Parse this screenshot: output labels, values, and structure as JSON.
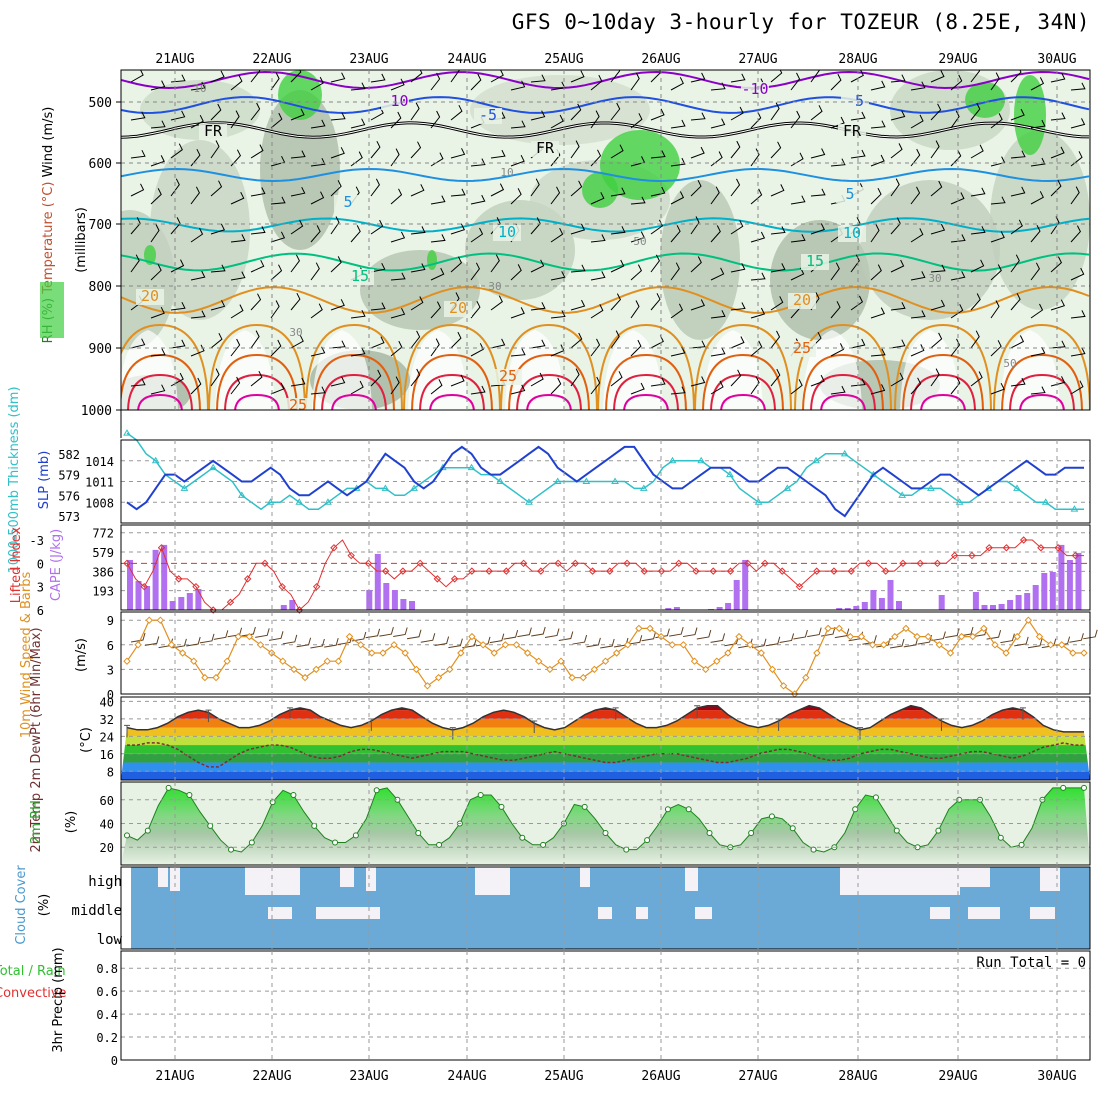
{
  "title": "GFS 0~10day 3-hourly for TOZEUR (8.25E, 34N)",
  "dates": [
    "21AUG",
    "22AUG",
    "23AUG",
    "24AUG",
    "25AUG",
    "26AUG",
    "27AUG",
    "28AUG",
    "29AUG",
    "30AUG"
  ],
  "colors": {
    "temp_isotherms": [
      "#8a00c8",
      "#2050e0",
      "#000000",
      "#1e90e0",
      "#00b0c8",
      "#00c080",
      "#e09020",
      "#e06010",
      "#e02040",
      "#e000a0"
    ],
    "rh": "#40d040",
    "slp": "#2040d0",
    "thickness": "#30c0c8",
    "cape": "#b070f0",
    "li": "#e03030",
    "wind10": "#e09020",
    "barb": "#604020",
    "cloud": "#6baad7"
  },
  "labels": {
    "upper_left": [
      "RH (%)",
      "Temperature (°C)",
      "Wind (m/s)"
    ],
    "upper_right": "(millibars)",
    "thick_left": "1000-500mb Thickness (dm)",
    "thick_right": "SLP (mb)",
    "cape_left": "Lifted Index",
    "cape_right": "CAPE (J/kg)",
    "wind_left": "10m Wind Speed & Barbs",
    "wind_right": "(m/s)",
    "temp_left": "2m Temp 2m DewPt (6hr Min/Max)",
    "temp_right": "(°C)",
    "rh_left": "2m RH",
    "rh_right": "(%)",
    "cloud_left": "Cloud Cover",
    "cloud_right": "(%)",
    "precip_left": "Total / Rain Convective",
    "precip_right": "3hr Precip (mm)",
    "run_total": "Run Total = 0"
  },
  "chart_data": [
    {
      "type": "contour",
      "title": "Upper air: RH, Temperature, Wind",
      "ylabel": "millibars",
      "yticks": [
        500,
        600,
        700,
        800,
        900,
        1000
      ],
      "isotherms": [
        {
          "label": "-10",
          "values": [
            -10
          ]
        },
        {
          "label": "-5",
          "values": [
            -5
          ]
        },
        {
          "label": "FR",
          "values": [
            0
          ]
        },
        {
          "label": "5",
          "values": [
            5
          ]
        },
        {
          "label": "10",
          "values": [
            10
          ]
        },
        {
          "label": "15",
          "values": [
            15
          ]
        },
        {
          "label": "20",
          "values": [
            20
          ]
        },
        {
          "label": "25",
          "values": [
            25
          ]
        }
      ],
      "rh_labels": [
        "10",
        "10",
        "50",
        "30",
        "30",
        "30",
        "50"
      ]
    },
    {
      "type": "line",
      "title": "1000-500mb Thickness & SLP",
      "thickness_ticks": [
        573,
        576,
        579,
        582
      ],
      "slp_ticks": [
        1008,
        1011,
        1014
      ],
      "thickness": [
        585,
        584,
        582,
        581,
        579,
        578,
        577,
        578,
        579,
        580,
        579,
        578,
        576,
        575,
        574,
        575,
        575,
        576,
        575,
        574,
        574,
        575,
        576,
        577,
        577,
        578,
        577,
        577,
        576,
        576,
        577,
        578,
        579,
        580,
        580,
        580,
        580,
        579,
        579,
        578,
        577,
        576,
        575,
        576,
        577,
        578,
        578,
        578,
        578,
        578,
        578,
        578,
        578,
        577,
        577,
        578,
        580,
        581,
        581,
        581,
        581,
        580,
        580,
        579,
        577,
        576,
        575,
        575,
        576,
        577,
        578,
        580,
        581,
        582,
        582,
        582,
        581,
        580,
        579,
        578,
        577,
        576,
        576,
        577,
        577,
        577,
        576,
        575,
        575,
        576,
        577,
        578,
        578,
        577,
        576,
        575,
        575,
        574,
        574,
        574,
        574
      ],
      "slp": [
        1008,
        1007,
        1008,
        1010,
        1012,
        1012,
        1011,
        1012,
        1013,
        1014,
        1013,
        1012,
        1011,
        1011,
        1012,
        1013,
        1012,
        1010,
        1009,
        1009,
        1010,
        1011,
        1010,
        1009,
        1010,
        1011,
        1013,
        1015,
        1014,
        1013,
        1011,
        1010,
        1011,
        1013,
        1015,
        1016,
        1015,
        1013,
        1012,
        1012,
        1013,
        1014,
        1015,
        1016,
        1015,
        1013,
        1012,
        1011,
        1012,
        1013,
        1014,
        1015,
        1016,
        1016,
        1014,
        1012,
        1011,
        1010,
        1010,
        1011,
        1012,
        1013,
        1013,
        1013,
        1012,
        1011,
        1011,
        1012,
        1013,
        1013,
        1012,
        1011,
        1010,
        1009,
        1007,
        1006,
        1008,
        1010,
        1012,
        1013,
        1012,
        1011,
        1010,
        1010,
        1011,
        1012,
        1012,
        1011,
        1010,
        1009,
        1010,
        1011,
        1012,
        1013,
        1014,
        1013,
        1012,
        1012,
        1013,
        1013,
        1013
      ]
    },
    {
      "type": "bar",
      "title": "CAPE & Lifted Index",
      "cape_ticks": [
        193,
        386,
        579,
        772
      ],
      "li_ticks": [
        -3,
        0,
        3,
        6
      ],
      "cape": [
        500,
        290,
        240,
        600,
        650,
        90,
        130,
        170,
        210,
        0,
        0,
        0,
        0,
        0,
        0,
        0,
        0,
        0,
        50,
        100,
        0,
        0,
        0,
        0,
        0,
        0,
        0,
        0,
        200,
        560,
        270,
        200,
        110,
        90,
        0,
        0,
        0,
        0,
        0,
        0,
        0,
        0,
        0,
        0,
        0,
        0,
        0,
        0,
        0,
        0,
        0,
        0,
        0,
        0,
        0,
        0,
        0,
        0,
        0,
        0,
        0,
        0,
        0,
        20,
        30,
        0,
        0,
        0,
        10,
        30,
        70,
        300,
        500,
        0,
        0,
        0,
        0,
        0,
        0,
        0,
        0,
        0,
        0,
        20,
        20,
        40,
        80,
        200,
        120,
        300,
        90,
        0,
        0,
        0,
        0,
        150,
        0,
        0,
        0,
        180,
        50,
        50,
        60,
        100,
        150,
        170,
        250,
        370,
        380,
        650,
        500,
        570
      ],
      "li": [
        0,
        2,
        3,
        1,
        -2,
        1,
        2,
        2,
        3,
        5,
        6,
        6,
        5,
        4,
        2,
        0,
        0,
        1,
        3,
        4,
        6,
        5,
        3,
        0,
        -2,
        -3,
        -1,
        0,
        0,
        1,
        1,
        2,
        1,
        1,
        0,
        1,
        2,
        3,
        2,
        2,
        1,
        1,
        1,
        1,
        1,
        0,
        0,
        1,
        1,
        0,
        0,
        1,
        0,
        0,
        1,
        1,
        1,
        0,
        0,
        0,
        1,
        1,
        1,
        1,
        0,
        0,
        1,
        1,
        1,
        1,
        1,
        0,
        0,
        1,
        0,
        0,
        1,
        2,
        3,
        2,
        1,
        1,
        1,
        1,
        1,
        0,
        0,
        0,
        1,
        1,
        0,
        0,
        0,
        0,
        0,
        0,
        -1,
        -1,
        -1,
        -1,
        -2,
        -2,
        -2,
        -2,
        -3,
        -3,
        -2,
        -2,
        -2,
        -1,
        -1,
        -1
      ]
    },
    {
      "type": "line",
      "title": "10m Wind Speed & Barbs",
      "yticks": [
        0,
        3,
        6,
        9
      ],
      "values": [
        4,
        6,
        9,
        9,
        6,
        5,
        4,
        2,
        2,
        4,
        7,
        7,
        6,
        5,
        4,
        3,
        2,
        3,
        4,
        4,
        7,
        6,
        5,
        5,
        6,
        5,
        3,
        1,
        2,
        3,
        5,
        7,
        6,
        5,
        6,
        6,
        5,
        4,
        3,
        4,
        2,
        2,
        3,
        4,
        5,
        6,
        8,
        8,
        7,
        6,
        6,
        4,
        3,
        4,
        5,
        7,
        6,
        5,
        3,
        1,
        0,
        2,
        5,
        8,
        8,
        7,
        7,
        6,
        6,
        7,
        8,
        7,
        7,
        6,
        5,
        7,
        7,
        8,
        6,
        5,
        7,
        9,
        7,
        6,
        6,
        5,
        5
      ]
    },
    {
      "type": "area",
      "title": "2m Temp & 2m DewPt (6hr Min/Max)",
      "yticks": [
        8,
        16,
        24,
        32,
        40
      ],
      "temp": [
        28,
        27,
        27,
        28,
        30,
        33,
        35,
        36,
        35,
        32,
        30,
        28,
        28,
        29,
        31,
        34,
        36,
        37,
        36,
        33,
        31,
        29,
        28,
        29,
        31,
        34,
        36,
        37,
        36,
        33,
        30,
        28,
        27,
        28,
        30,
        33,
        35,
        36,
        35,
        33,
        30,
        28,
        27,
        28,
        31,
        34,
        36,
        37,
        36,
        33,
        30,
        28,
        28,
        29,
        31,
        34,
        37,
        38,
        38,
        34,
        31,
        29,
        28,
        29,
        31,
        34,
        36,
        38,
        37,
        34,
        31,
        29,
        27,
        28,
        31,
        34,
        36,
        38,
        37,
        34,
        31,
        29,
        28,
        29,
        31,
        34,
        36,
        37,
        36,
        33,
        29,
        27,
        26,
        26,
        26
      ],
      "dewpt": [
        20,
        20,
        21,
        21,
        20,
        18,
        15,
        12,
        10,
        10,
        13,
        16,
        18,
        19,
        20,
        20,
        19,
        17,
        15,
        14,
        14,
        15,
        17,
        18,
        18,
        17,
        16,
        15,
        14,
        15,
        16,
        17,
        17,
        17,
        16,
        15,
        14,
        13,
        13,
        14,
        15,
        16,
        17,
        16,
        15,
        14,
        13,
        12,
        12,
        13,
        14,
        15,
        16,
        16,
        16,
        15,
        14,
        13,
        12,
        12,
        13,
        14,
        16,
        17,
        18,
        18,
        17,
        16,
        14,
        13,
        13,
        14,
        16,
        17,
        18,
        18,
        17,
        16,
        15,
        14,
        14,
        15,
        16,
        17,
        17,
        16,
        15,
        14,
        15,
        17,
        19,
        20,
        21,
        20,
        20
      ]
    },
    {
      "type": "area",
      "title": "2m RH",
      "yticks": [
        20,
        40,
        60
      ],
      "values": [
        30,
        26,
        34,
        55,
        70,
        68,
        64,
        50,
        38,
        26,
        18,
        16,
        24,
        38,
        58,
        68,
        64,
        50,
        38,
        28,
        24,
        24,
        30,
        44,
        68,
        70,
        60,
        46,
        32,
        22,
        22,
        28,
        40,
        60,
        64,
        64,
        54,
        40,
        28,
        22,
        22,
        28,
        40,
        56,
        54,
        44,
        32,
        22,
        18,
        18,
        26,
        38,
        52,
        56,
        52,
        44,
        32,
        22,
        20,
        22,
        32,
        44,
        46,
        44,
        36,
        24,
        18,
        16,
        20,
        32,
        52,
        64,
        62,
        48,
        34,
        24,
        20,
        22,
        34,
        52,
        60,
        60,
        60,
        46,
        28,
        20,
        22,
        36,
        60,
        70,
        70,
        70,
        70
      ]
    },
    {
      "type": "heatmap",
      "title": "Cloud Cover",
      "yticks": [
        "high",
        "middle",
        "low"
      ]
    },
    {
      "type": "bar",
      "title": "3hr Precip (mm)",
      "yticks": [
        0,
        0.2,
        0.4,
        0.6,
        0.8
      ],
      "values": [],
      "note": "Run Total = 0"
    }
  ]
}
